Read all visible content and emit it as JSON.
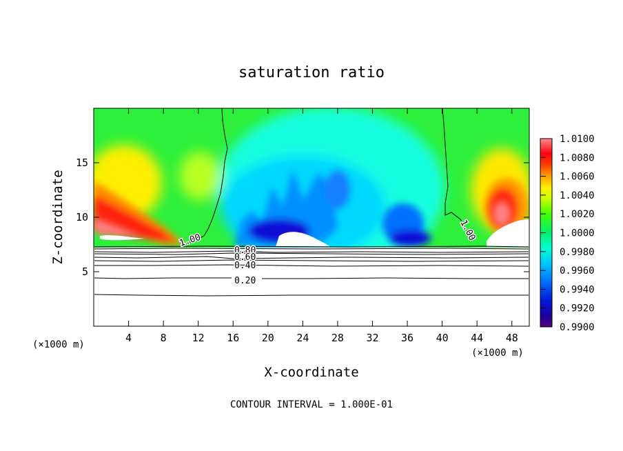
{
  "chart_data": {
    "type": "heatmap",
    "title": "saturation ratio",
    "xlabel": "X-coordinate",
    "ylabel": "Z-coordinate",
    "x_unit_left": "(×1000 m)",
    "x_unit_right": "(×1000 m)",
    "footer": "CONTOUR INTERVAL = 1.000E-01",
    "xlim": [
      0,
      50
    ],
    "ylim": [
      0,
      20
    ],
    "x_ticks": [
      4,
      8,
      12,
      16,
      20,
      24,
      28,
      32,
      36,
      40,
      44,
      48
    ],
    "y_ticks": [
      5,
      10,
      15
    ],
    "colorbar": {
      "min": 0.99,
      "max": 1.01,
      "labels": [
        "1.0100",
        "1.0080",
        "1.0060",
        "1.0040",
        "1.0020",
        "1.0000",
        "0.9980",
        "0.9960",
        "0.9940",
        "0.9920",
        "0.9900"
      ]
    },
    "contours": [
      {
        "level": 0.2,
        "label": "0.20",
        "z": 4.4
      },
      {
        "level": 0.4,
        "label": "0.40",
        "z": 5.6
      },
      {
        "level": 0.6,
        "label": "0.60",
        "z": 6.2
      },
      {
        "level": 0.8,
        "label": "0.80",
        "z": 6.7
      },
      {
        "level": 1.0,
        "label": "1.00"
      }
    ]
  }
}
